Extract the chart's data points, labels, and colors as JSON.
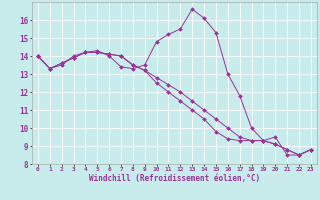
{
  "title": "",
  "xlabel": "Windchill (Refroidissement éolien,°C)",
  "ylabel": "",
  "xlim": [
    -0.5,
    23.5
  ],
  "ylim": [
    8,
    17
  ],
  "yticks": [
    8,
    9,
    10,
    11,
    12,
    13,
    14,
    15,
    16
  ],
  "xticks": [
    0,
    1,
    2,
    3,
    4,
    5,
    6,
    7,
    8,
    9,
    10,
    11,
    12,
    13,
    14,
    15,
    16,
    17,
    18,
    19,
    20,
    21,
    22,
    23
  ],
  "background_color": "#c8ecec",
  "line_color": "#993399",
  "grid_color": "#ffffff",
  "series1": [
    14.0,
    13.3,
    13.5,
    14.0,
    14.2,
    14.3,
    14.0,
    13.4,
    13.3,
    13.5,
    14.8,
    15.2,
    15.5,
    16.6,
    16.1,
    15.3,
    13.0,
    11.8,
    10.0,
    9.3,
    9.5,
    8.5,
    8.5,
    8.8
  ],
  "series2": [
    14.0,
    13.3,
    13.6,
    13.9,
    14.2,
    14.2,
    14.1,
    14.0,
    13.5,
    13.2,
    12.8,
    12.4,
    12.0,
    11.5,
    11.0,
    10.5,
    10.0,
    9.5,
    9.3,
    9.3,
    9.1,
    8.8,
    8.5,
    8.8
  ],
  "series3": [
    14.0,
    13.3,
    13.6,
    13.9,
    14.2,
    14.2,
    14.1,
    14.0,
    13.5,
    13.2,
    12.5,
    12.0,
    11.5,
    11.0,
    10.5,
    9.8,
    9.4,
    9.3,
    9.3,
    9.3,
    9.1,
    8.8,
    8.5,
    8.8
  ]
}
